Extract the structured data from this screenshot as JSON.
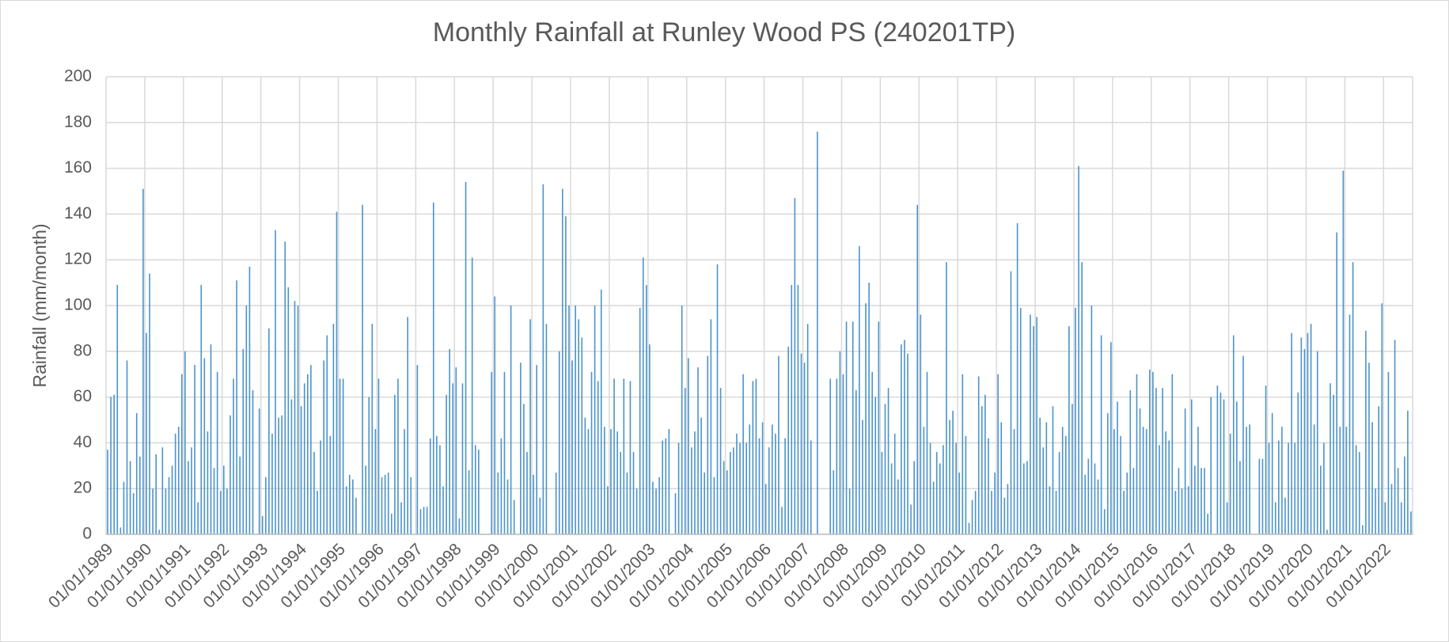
{
  "chart_data": {
    "type": "bar",
    "title": "Monthly Rainfall at Runley Wood PS (240201TP)",
    "y_label": "Rainfall (mm/month)",
    "color": "#4a93cc",
    "grid": true,
    "categories": [
      "01/01/1989",
      null,
      null,
      null,
      null,
      null,
      null,
      null,
      null,
      null,
      null,
      null,
      "01/01/1990",
      null,
      null,
      null,
      null,
      null,
      null,
      null,
      null,
      null,
      null,
      null,
      "01/01/1991",
      null,
      null,
      null,
      null,
      null,
      null,
      null,
      null,
      null,
      null,
      null,
      "01/01/1992",
      null,
      null,
      null,
      null,
      null,
      null,
      null,
      null,
      null,
      null,
      null,
      "01/01/1993",
      null,
      null,
      null,
      null,
      null,
      null,
      null,
      null,
      null,
      null,
      null,
      "01/01/1994",
      null,
      null,
      null,
      null,
      null,
      null,
      null,
      null,
      null,
      null,
      null,
      "01/01/1995",
      null,
      null,
      null,
      null,
      null,
      null,
      null,
      null,
      null,
      null,
      null,
      "01/01/1996",
      null,
      null,
      null,
      null,
      null,
      null,
      null,
      null,
      null,
      null,
      null,
      "01/01/1997",
      null,
      null,
      null,
      null,
      null,
      null,
      null,
      null,
      null,
      null,
      null,
      "01/01/1998",
      null,
      null,
      null,
      null,
      null,
      null,
      null,
      null,
      null,
      null,
      null,
      "01/01/1999",
      null,
      null,
      null,
      null,
      null,
      null,
      null,
      null,
      null,
      null,
      null,
      "01/01/2000",
      null,
      null,
      null,
      null,
      null,
      null,
      null,
      null,
      null,
      null,
      null,
      "01/01/2001",
      null,
      null,
      null,
      null,
      null,
      null,
      null,
      null,
      null,
      null,
      null,
      "01/01/2002",
      null,
      null,
      null,
      null,
      null,
      null,
      null,
      null,
      null,
      null,
      null,
      "01/01/2003",
      null,
      null,
      null,
      null,
      null,
      null,
      null,
      null,
      null,
      null,
      null,
      "01/01/2004",
      null,
      null,
      null,
      null,
      null,
      null,
      null,
      null,
      null,
      null,
      null,
      "01/01/2005",
      null,
      null,
      null,
      null,
      null,
      null,
      null,
      null,
      null,
      null,
      null,
      "01/01/2006",
      null,
      null,
      null,
      null,
      null,
      null,
      null,
      null,
      null,
      null,
      null,
      "01/01/2007",
      null,
      null,
      null,
      null,
      null,
      null,
      null,
      null,
      null,
      null,
      null,
      "01/01/2008",
      null,
      null,
      null,
      null,
      null,
      null,
      null,
      null,
      null,
      null,
      null,
      "01/01/2009",
      null,
      null,
      null,
      null,
      null,
      null,
      null,
      null,
      null,
      null,
      null,
      "01/01/2010",
      null,
      null,
      null,
      null,
      null,
      null,
      null,
      null,
      null,
      null,
      null,
      "01/01/2011",
      null,
      null,
      null,
      null,
      null,
      null,
      null,
      null,
      null,
      null,
      null,
      "01/01/2012",
      null,
      null,
      null,
      null,
      null,
      null,
      null,
      null,
      null,
      null,
      null,
      "01/01/2013",
      null,
      null,
      null,
      null,
      null,
      null,
      null,
      null,
      null,
      null,
      null,
      "01/01/2014",
      null,
      null,
      null,
      null,
      null,
      null,
      null,
      null,
      null,
      null,
      null,
      "01/01/2015",
      null,
      null,
      null,
      null,
      null,
      null,
      null,
      null,
      null,
      null,
      null,
      "01/01/2016",
      null,
      null,
      null,
      null,
      null,
      null,
      null,
      null,
      null,
      null,
      null,
      "01/01/2017",
      null,
      null,
      null,
      null,
      null,
      null,
      null,
      null,
      null,
      null,
      null,
      "01/01/2018",
      null,
      null,
      null,
      null,
      null,
      null,
      null,
      null,
      null,
      null,
      null,
      "01/01/2019",
      null,
      null,
      null,
      null,
      null,
      null,
      null,
      null,
      null,
      null,
      null,
      "01/01/2020",
      null,
      null,
      null,
      null,
      null,
      null,
      null,
      null,
      null,
      null,
      null,
      "01/01/2021",
      null,
      null,
      null,
      null,
      null,
      null,
      null,
      null,
      null,
      null,
      null,
      "01/01/2022",
      null,
      null,
      null,
      null,
      null,
      null,
      null,
      null
    ],
    "values": [
      37,
      60,
      61,
      109,
      3,
      23,
      76,
      32,
      18,
      53,
      34,
      151,
      88,
      114,
      20,
      35,
      2,
      38,
      20,
      25,
      30,
      44,
      47,
      70,
      80,
      32,
      38,
      74,
      14,
      109,
      77,
      45,
      83,
      29,
      71,
      19,
      30,
      20,
      52,
      68,
      111,
      34,
      81,
      100,
      117,
      63,
      0,
      55,
      8,
      25,
      90,
      44,
      133,
      51,
      52,
      128,
      108,
      59,
      102,
      100,
      56,
      66,
      70,
      74,
      36,
      19,
      41,
      76,
      87,
      43,
      92,
      141,
      68,
      68,
      21,
      26,
      24,
      16,
      0,
      144,
      30,
      60,
      92,
      46,
      68,
      25,
      26,
      27,
      9,
      61,
      68,
      14,
      46,
      95,
      25,
      0,
      74,
      11,
      12,
      12,
      42,
      145,
      43,
      39,
      21,
      61,
      81,
      66,
      73,
      7,
      66,
      154,
      28,
      121,
      39,
      37,
      0,
      0,
      0,
      71,
      104,
      27,
      42,
      71,
      24,
      100,
      15,
      0,
      75,
      57,
      36,
      94,
      26,
      74,
      16,
      153,
      92,
      0,
      0,
      27,
      80,
      151,
      139,
      100,
      76,
      100,
      94,
      86,
      51,
      46,
      71,
      100,
      67,
      107,
      47,
      21,
      46,
      68,
      45,
      36,
      68,
      27,
      67,
      36,
      20,
      99,
      121,
      109,
      83,
      23,
      20,
      25,
      41,
      42,
      46,
      0,
      18,
      40,
      100,
      64,
      77,
      38,
      45,
      73,
      51,
      27,
      78,
      94,
      25,
      118,
      64,
      32,
      28,
      36,
      38,
      44,
      40,
      70,
      40,
      48,
      67,
      68,
      42,
      49,
      22,
      38,
      48,
      44,
      78,
      12,
      42,
      82,
      109,
      147,
      109,
      79,
      75,
      92,
      41,
      0,
      176,
      0,
      0,
      0,
      68,
      28,
      68,
      80,
      70,
      93,
      20,
      93,
      63,
      126,
      50,
      101,
      110,
      71,
      60,
      93,
      36,
      57,
      64,
      31,
      44,
      24,
      83,
      85,
      79,
      13,
      32,
      144,
      96,
      47,
      71,
      40,
      23,
      36,
      31,
      39,
      119,
      50,
      54,
      40,
      27,
      70,
      43,
      5,
      15,
      19,
      69,
      56,
      61,
      42,
      19,
      27,
      70,
      49,
      16,
      22,
      115,
      46,
      136,
      99,
      31,
      32,
      96,
      91,
      95,
      51,
      38,
      49,
      21,
      56,
      19,
      36,
      47,
      43,
      91,
      57,
      99,
      161,
      119,
      26,
      33,
      100,
      31,
      24,
      87,
      11,
      53,
      84,
      46,
      58,
      43,
      19,
      27,
      63,
      29,
      70,
      55,
      47,
      46,
      72,
      71,
      64,
      39,
      64,
      45,
      41,
      70,
      19,
      29,
      20,
      55,
      21,
      59,
      30,
      47,
      29,
      29,
      9,
      60,
      0,
      65,
      62,
      59,
      14,
      44,
      87,
      58,
      32,
      78,
      47,
      48,
      0,
      0,
      33,
      33,
      65,
      40,
      53,
      14,
      41,
      47,
      16,
      40,
      88,
      40,
      62,
      86,
      81,
      88,
      92,
      48,
      80,
      30,
      40,
      2,
      66,
      61,
      132,
      47,
      159,
      47,
      96,
      119,
      39,
      36,
      4,
      89,
      75,
      49,
      20,
      56,
      101,
      14,
      71,
      22,
      85,
      29,
      14,
      34,
      54,
      10
    ],
    "ylim": [
      0,
      200
    ],
    "yticks": [
      0,
      20,
      40,
      60,
      80,
      100,
      120,
      140,
      160,
      180,
      200
    ]
  }
}
